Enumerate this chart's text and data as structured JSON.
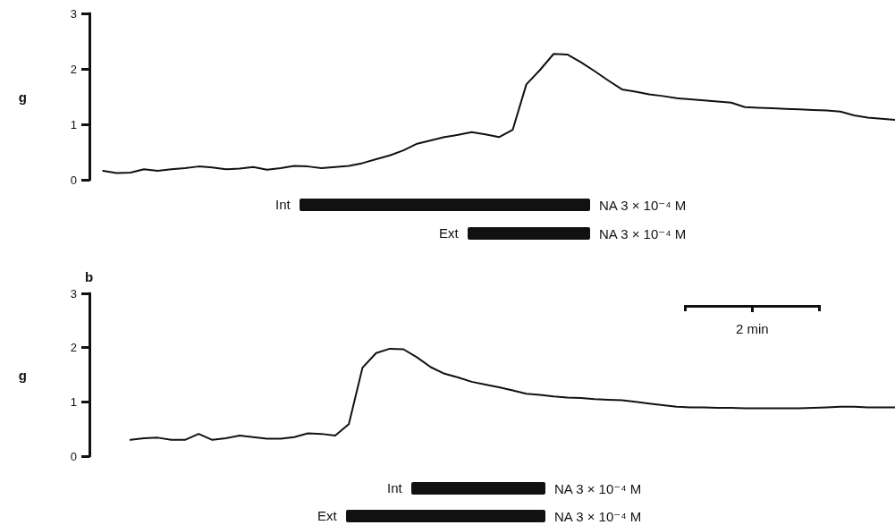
{
  "chart_data": [
    {
      "type": "line",
      "ylabel": "g",
      "ylim": [
        0,
        3
      ],
      "yticks": [
        0,
        1,
        2,
        3
      ],
      "tick_labels": "y",
      "grid": false,
      "marker": "none",
      "line_style": "solid",
      "categories": [
        null,
        null,
        null,
        null,
        null,
        null,
        null,
        null,
        null,
        null,
        null,
        null,
        null,
        null,
        null,
        null,
        null,
        null,
        null,
        null,
        null,
        null,
        null,
        null,
        null,
        null,
        null,
        null,
        null,
        null,
        null,
        null,
        null,
        null,
        null,
        null,
        null,
        null,
        null,
        null,
        null,
        null,
        null,
        null,
        null,
        null,
        null,
        null,
        null,
        null,
        null,
        null,
        null,
        null,
        null,
        null,
        null,
        null,
        null,
        null
      ],
      "series": [
        {
          "color": "#111111",
          "values": [
            null,
            0.16,
            0.12,
            0.13,
            0.19,
            0.16,
            0.19,
            0.21,
            0.24,
            0.22,
            0.19,
            0.2,
            0.23,
            0.18,
            0.21,
            0.25,
            0.24,
            0.21,
            0.23,
            0.25,
            0.3,
            0.37,
            0.44,
            0.53,
            0.65,
            0.71,
            0.77,
            0.81,
            0.86,
            0.82,
            0.77,
            0.9,
            1.72,
            1.98,
            2.27,
            2.26,
            2.12,
            1.96,
            1.79,
            1.63,
            1.59,
            1.54,
            1.51,
            1.47,
            1.45,
            1.43,
            1.41,
            1.39,
            1.31,
            1.3,
            1.29,
            1.28,
            1.27,
            1.26,
            1.25,
            1.23,
            1.16,
            1.12,
            1.1,
            1.08
          ]
        }
      ],
      "annotations": [
        "Int",
        "NA 3 × 10⁻⁴ M",
        "Ext",
        "NA 3 × 10⁻⁴ M"
      ]
    },
    {
      "type": "line",
      "title": "b",
      "ylabel": "g",
      "ylim": [
        0,
        3
      ],
      "yticks": [
        0,
        1,
        2,
        3
      ],
      "tick_labels": "y",
      "grid": false,
      "marker": "none",
      "line_style": "solid",
      "categories": [
        null,
        null,
        null,
        null,
        null,
        null,
        null,
        null,
        null,
        null,
        null,
        null,
        null,
        null,
        null,
        null,
        null,
        null,
        null,
        null,
        null,
        null,
        null,
        null,
        null,
        null,
        null,
        null,
        null,
        null,
        null,
        null,
        null,
        null,
        null,
        null,
        null,
        null,
        null,
        null,
        null,
        null,
        null,
        null,
        null,
        null,
        null,
        null,
        null,
        null,
        null,
        null,
        null,
        null,
        null,
        null,
        null,
        null,
        null,
        null
      ],
      "series": [
        {
          "color": "#111111",
          "values": [
            null,
            null,
            null,
            0.3,
            0.33,
            0.34,
            0.3,
            0.3,
            0.41,
            0.3,
            0.33,
            0.38,
            0.35,
            0.32,
            0.32,
            0.35,
            0.42,
            0.41,
            0.38,
            0.59,
            1.63,
            1.9,
            1.98,
            1.97,
            1.82,
            1.64,
            1.52,
            1.45,
            1.37,
            1.32,
            1.27,
            1.21,
            1.15,
            1.13,
            1.1,
            1.08,
            1.07,
            1.05,
            1.04,
            1.03,
            1.0,
            0.97,
            0.94,
            0.91,
            0.9,
            0.9,
            0.89,
            0.89,
            0.88,
            0.88,
            0.88,
            0.88,
            0.88,
            0.89,
            0.9,
            0.91,
            0.91,
            0.9,
            0.9,
            0.9
          ]
        }
      ],
      "annotations": [
        "Int",
        "NA 3 × 10⁻⁴ M",
        "Ext",
        "NA 3 × 10⁻⁴ M",
        "2 min"
      ]
    }
  ]
}
